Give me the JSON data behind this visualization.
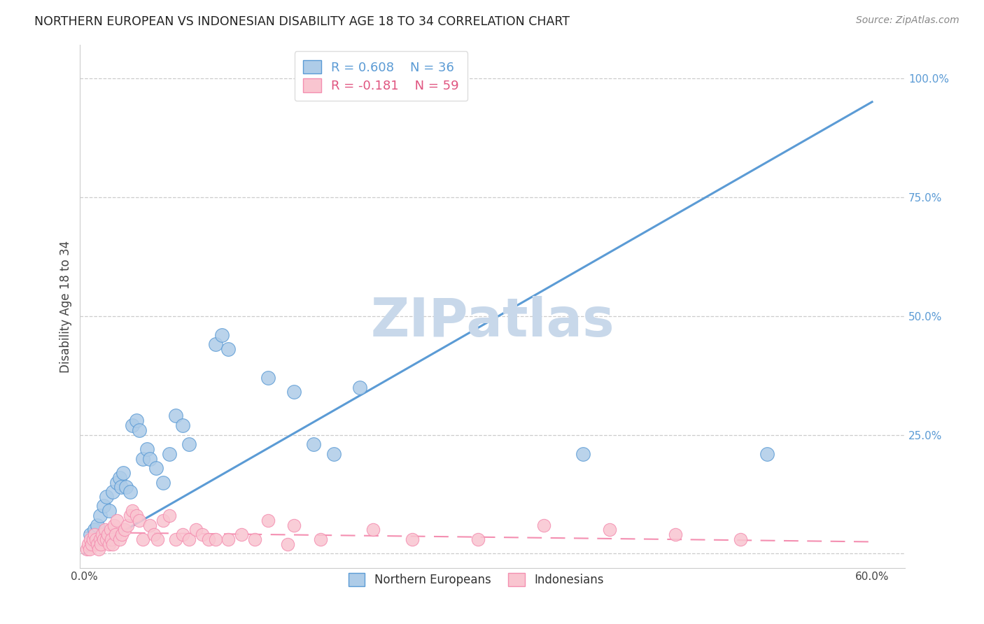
{
  "title": "NORTHERN EUROPEAN VS INDONESIAN DISABILITY AGE 18 TO 34 CORRELATION CHART",
  "source": "Source: ZipAtlas.com",
  "ylabel": "Disability Age 18 to 34",
  "blue_R": 0.608,
  "blue_N": 36,
  "pink_R": -0.181,
  "pink_N": 59,
  "watermark": "ZIPatlas",
  "watermark_color": "#c8d8ea",
  "legend_label_blue": "Northern Europeans",
  "legend_label_pink": "Indonesians",
  "blue_line": [
    [
      0.0,
      0.0
    ],
    [
      0.6,
      0.95
    ]
  ],
  "pink_line": [
    [
      0.0,
      0.045
    ],
    [
      0.6,
      0.025
    ]
  ],
  "blue_points": [
    [
      0.005,
      0.04
    ],
    [
      0.008,
      0.05
    ],
    [
      0.01,
      0.06
    ],
    [
      0.012,
      0.08
    ],
    [
      0.015,
      0.1
    ],
    [
      0.017,
      0.12
    ],
    [
      0.019,
      0.09
    ],
    [
      0.022,
      0.13
    ],
    [
      0.025,
      0.15
    ],
    [
      0.027,
      0.16
    ],
    [
      0.028,
      0.14
    ],
    [
      0.03,
      0.17
    ],
    [
      0.032,
      0.14
    ],
    [
      0.035,
      0.13
    ],
    [
      0.037,
      0.27
    ],
    [
      0.04,
      0.28
    ],
    [
      0.042,
      0.26
    ],
    [
      0.045,
      0.2
    ],
    [
      0.048,
      0.22
    ],
    [
      0.05,
      0.2
    ],
    [
      0.055,
      0.18
    ],
    [
      0.06,
      0.15
    ],
    [
      0.065,
      0.21
    ],
    [
      0.07,
      0.29
    ],
    [
      0.075,
      0.27
    ],
    [
      0.08,
      0.23
    ],
    [
      0.1,
      0.44
    ],
    [
      0.105,
      0.46
    ],
    [
      0.11,
      0.43
    ],
    [
      0.14,
      0.37
    ],
    [
      0.16,
      0.34
    ],
    [
      0.175,
      0.23
    ],
    [
      0.19,
      0.21
    ],
    [
      0.21,
      0.35
    ],
    [
      0.38,
      0.21
    ],
    [
      0.52,
      0.21
    ]
  ],
  "pink_points": [
    [
      0.002,
      0.01
    ],
    [
      0.003,
      0.02
    ],
    [
      0.004,
      0.01
    ],
    [
      0.005,
      0.03
    ],
    [
      0.006,
      0.02
    ],
    [
      0.007,
      0.03
    ],
    [
      0.008,
      0.04
    ],
    [
      0.009,
      0.03
    ],
    [
      0.01,
      0.02
    ],
    [
      0.011,
      0.01
    ],
    [
      0.012,
      0.03
    ],
    [
      0.013,
      0.02
    ],
    [
      0.014,
      0.04
    ],
    [
      0.015,
      0.03
    ],
    [
      0.016,
      0.05
    ],
    [
      0.017,
      0.03
    ],
    [
      0.018,
      0.04
    ],
    [
      0.019,
      0.02
    ],
    [
      0.02,
      0.05
    ],
    [
      0.021,
      0.03
    ],
    [
      0.022,
      0.02
    ],
    [
      0.023,
      0.06
    ],
    [
      0.024,
      0.04
    ],
    [
      0.025,
      0.07
    ],
    [
      0.027,
      0.03
    ],
    [
      0.029,
      0.04
    ],
    [
      0.031,
      0.05
    ],
    [
      0.033,
      0.06
    ],
    [
      0.035,
      0.08
    ],
    [
      0.037,
      0.09
    ],
    [
      0.04,
      0.08
    ],
    [
      0.042,
      0.07
    ],
    [
      0.045,
      0.03
    ],
    [
      0.05,
      0.06
    ],
    [
      0.053,
      0.04
    ],
    [
      0.056,
      0.03
    ],
    [
      0.06,
      0.07
    ],
    [
      0.065,
      0.08
    ],
    [
      0.07,
      0.03
    ],
    [
      0.075,
      0.04
    ],
    [
      0.08,
      0.03
    ],
    [
      0.085,
      0.05
    ],
    [
      0.09,
      0.04
    ],
    [
      0.095,
      0.03
    ],
    [
      0.1,
      0.03
    ],
    [
      0.11,
      0.03
    ],
    [
      0.12,
      0.04
    ],
    [
      0.13,
      0.03
    ],
    [
      0.14,
      0.07
    ],
    [
      0.155,
      0.02
    ],
    [
      0.16,
      0.06
    ],
    [
      0.18,
      0.03
    ],
    [
      0.22,
      0.05
    ],
    [
      0.25,
      0.03
    ],
    [
      0.3,
      0.03
    ],
    [
      0.35,
      0.06
    ],
    [
      0.4,
      0.05
    ],
    [
      0.45,
      0.04
    ],
    [
      0.5,
      0.03
    ]
  ]
}
